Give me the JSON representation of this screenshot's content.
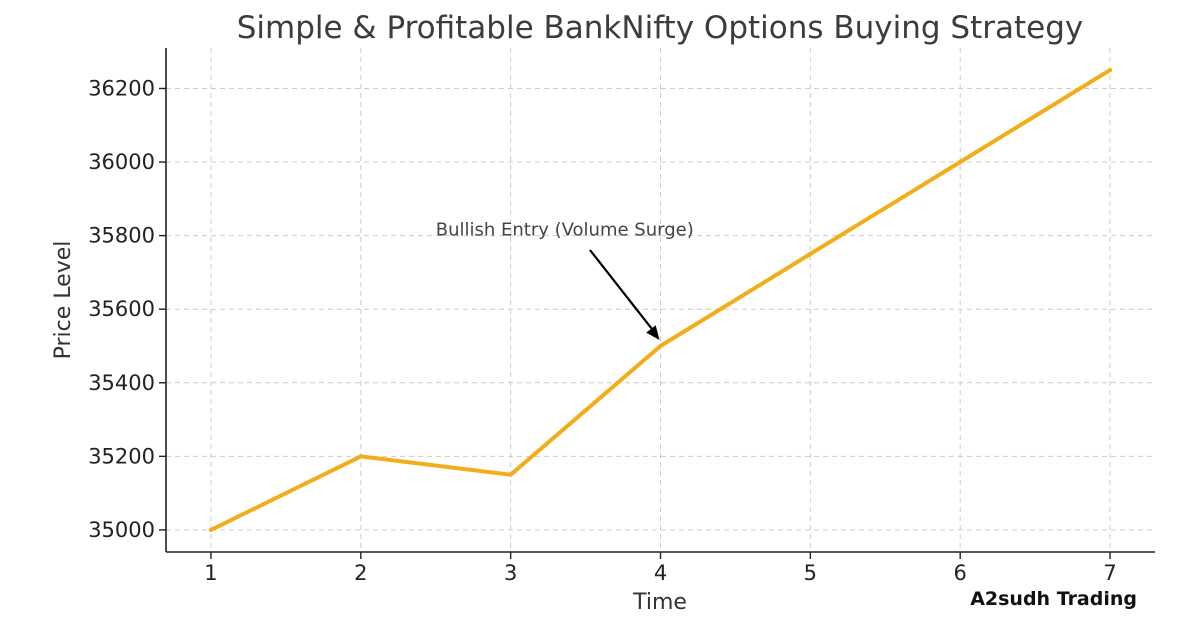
{
  "chart_data": {
    "type": "line",
    "title": "Simple & Profitable BankNifty Options Buying Strategy",
    "xlabel": "Time",
    "ylabel": "Price Level",
    "x": [
      1,
      2,
      3,
      4,
      5,
      6,
      7
    ],
    "series": [
      {
        "values": [
          35000,
          35200,
          35150,
          35500,
          35750,
          36000,
          36250
        ]
      }
    ],
    "xlim": [
      0.7,
      7.3
    ],
    "ylim": [
      34940,
      36310
    ],
    "xticks": [
      1,
      2,
      3,
      4,
      5,
      6,
      7
    ],
    "yticks": [
      35000,
      35200,
      35400,
      35600,
      35800,
      36000,
      36200
    ],
    "grid": true,
    "line_color": "#f2ad18",
    "annotation": {
      "text": "Bullish Entry (Volume Surge)",
      "text_x": 2.5,
      "text_y": 35800,
      "point_x": 4,
      "point_y": 35500
    }
  },
  "watermark": "A2sudh Trading"
}
